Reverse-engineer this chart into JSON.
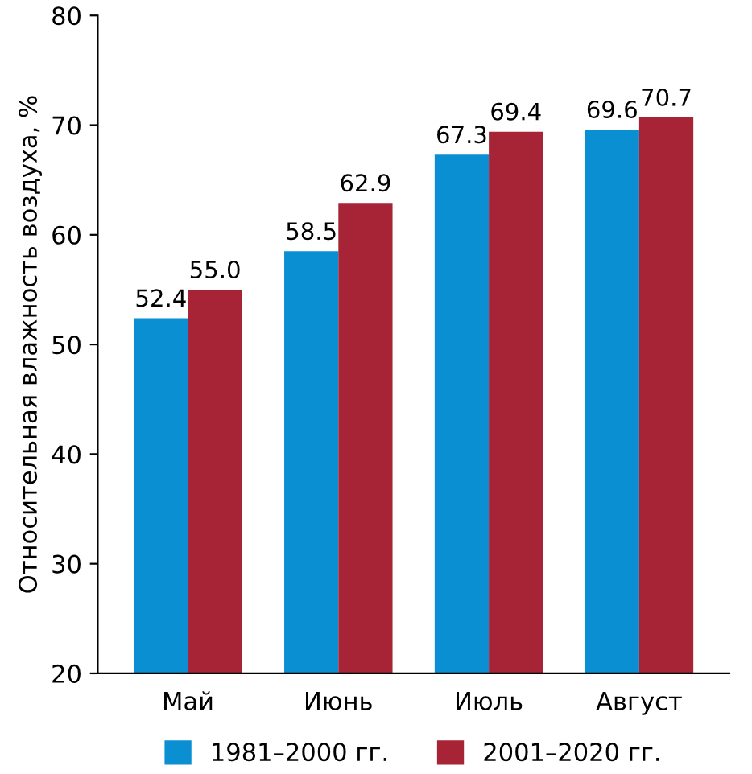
{
  "chart_data": {
    "type": "bar",
    "ylabel": "Относительная влажность воздуха, %",
    "categories": [
      "Май",
      "Июнь",
      "Июль",
      "Август"
    ],
    "series": [
      {
        "name": "1981–2000 гг.",
        "color": "#0b8fd3",
        "values": [
          52.4,
          58.5,
          67.3,
          69.6
        ],
        "value_labels": [
          "52.4",
          "58.5",
          "67.3",
          "69.6"
        ]
      },
      {
        "name": "2001–2020 гг.",
        "color": "#a72336",
        "values": [
          55.0,
          62.9,
          69.4,
          70.7
        ],
        "value_labels": [
          "55.0",
          "62.9",
          "69.4",
          "70.7"
        ]
      }
    ],
    "ylim": [
      20,
      80
    ],
    "yticks": [
      20,
      30,
      40,
      50,
      60,
      70,
      80
    ],
    "grid": false,
    "legend": "bottom"
  }
}
